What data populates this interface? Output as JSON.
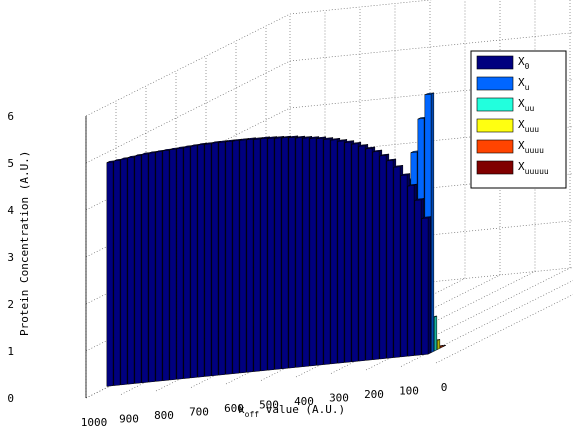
{
  "chart_data": {
    "type": "bar3d",
    "title": "",
    "xlabel": "k",
    "xlabel_sub": "off",
    "xlabel_rest": " value (A.U.)",
    "ylabel": "Protein Concentration (A.U.)",
    "zlim": [
      0,
      6
    ],
    "z_ticks": [
      "0",
      "1",
      "2",
      "3",
      "4",
      "5",
      "6"
    ],
    "koff_ticks": [
      "1000",
      "900",
      "800",
      "700",
      "600",
      "500",
      "400",
      "300",
      "200",
      "100",
      "0"
    ],
    "grid": true,
    "legend_position": "top-right",
    "koff": [
      1000,
      980,
      960,
      940,
      920,
      900,
      880,
      860,
      840,
      820,
      800,
      780,
      760,
      740,
      720,
      700,
      680,
      660,
      640,
      620,
      600,
      580,
      560,
      540,
      520,
      500,
      480,
      460,
      440,
      420,
      400,
      380,
      360,
      340,
      320,
      300,
      280,
      260,
      240,
      220,
      200,
      180,
      160,
      140,
      120,
      100
    ],
    "series": [
      {
        "name": "X0",
        "color": "#00007f",
        "values": [
          4.76,
          4.78,
          4.8,
          4.82,
          4.84,
          4.86,
          4.87,
          4.88,
          4.89,
          4.9,
          4.91,
          4.92,
          4.93,
          4.94,
          4.94,
          4.95,
          4.95,
          4.95,
          4.95,
          4.95,
          4.95,
          4.94,
          4.94,
          4.93,
          4.92,
          4.91,
          4.9,
          4.88,
          4.86,
          4.84,
          4.82,
          4.79,
          4.76,
          4.72,
          4.68,
          4.63,
          4.57,
          4.5,
          4.42,
          4.32,
          4.2,
          4.05,
          3.86,
          3.62,
          3.3,
          2.9
        ]
      },
      {
        "name": "Xu",
        "color": "#0066ff",
        "values": [
          0.3,
          0.33,
          0.36,
          0.39,
          0.42,
          0.45,
          0.48,
          0.51,
          0.54,
          0.57,
          0.6,
          0.63,
          0.66,
          0.69,
          0.72,
          0.75,
          0.78,
          0.81,
          0.84,
          0.88,
          0.92,
          0.96,
          1.0,
          1.05,
          1.1,
          1.15,
          1.2,
          1.26,
          1.32,
          1.39,
          1.46,
          1.54,
          1.63,
          1.72,
          1.83,
          1.95,
          2.09,
          2.25,
          2.44,
          2.66,
          2.94,
          3.28,
          3.72,
          4.3,
          5.0,
          5.5
        ]
      },
      {
        "name": "Xuu",
        "color": "#22ffdd",
        "values": [
          0.005,
          0.005,
          0.005,
          0.006,
          0.006,
          0.006,
          0.007,
          0.007,
          0.008,
          0.008,
          0.009,
          0.009,
          0.01,
          0.01,
          0.011,
          0.012,
          0.013,
          0.014,
          0.015,
          0.016,
          0.018,
          0.019,
          0.021,
          0.023,
          0.025,
          0.027,
          0.03,
          0.033,
          0.037,
          0.041,
          0.046,
          0.052,
          0.058,
          0.066,
          0.075,
          0.086,
          0.1,
          0.118,
          0.14,
          0.17,
          0.21,
          0.26,
          0.33,
          0.42,
          0.55,
          0.72
        ]
      },
      {
        "name": "Xuuu",
        "color": "#ffff11",
        "values": [
          0.0,
          0.0,
          0.0,
          0.0,
          0.0,
          0.0,
          0.0,
          0.0,
          0.0,
          0.0,
          0.001,
          0.001,
          0.001,
          0.001,
          0.001,
          0.001,
          0.001,
          0.001,
          0.002,
          0.002,
          0.002,
          0.002,
          0.003,
          0.003,
          0.003,
          0.004,
          0.004,
          0.005,
          0.006,
          0.007,
          0.008,
          0.009,
          0.011,
          0.013,
          0.015,
          0.018,
          0.022,
          0.027,
          0.033,
          0.041,
          0.052,
          0.066,
          0.085,
          0.11,
          0.145,
          0.19
        ]
      },
      {
        "name": "Xuuuu",
        "color": "#ff4400",
        "values": [
          0,
          0,
          0,
          0,
          0,
          0,
          0,
          0,
          0,
          0,
          0,
          0,
          0,
          0,
          0,
          0,
          0,
          0,
          0,
          0,
          0,
          0,
          0,
          0,
          0,
          0,
          0,
          0.001,
          0.001,
          0.001,
          0.001,
          0.001,
          0.002,
          0.002,
          0.002,
          0.003,
          0.003,
          0.004,
          0.005,
          0.006,
          0.008,
          0.01,
          0.013,
          0.017,
          0.023,
          0.03
        ]
      },
      {
        "name": "Xuuuuu",
        "color": "#800000",
        "values": [
          0,
          0,
          0,
          0,
          0,
          0,
          0,
          0,
          0,
          0,
          0,
          0,
          0,
          0,
          0,
          0,
          0,
          0,
          0,
          0,
          0,
          0,
          0,
          0,
          0,
          0,
          0,
          0,
          0,
          0,
          0,
          0,
          0,
          0,
          0,
          0,
          0,
          0.001,
          0.001,
          0.001,
          0.001,
          0.001,
          0.001,
          0.002,
          0.002,
          0.003
        ]
      }
    ]
  },
  "legend": {
    "items": [
      {
        "base": "X",
        "sub": "0",
        "color": "#00007f"
      },
      {
        "base": "X",
        "sub": "u",
        "color": "#0066ff"
      },
      {
        "base": "X",
        "sub": "uu",
        "color": "#22ffdd"
      },
      {
        "base": "X",
        "sub": "uuu",
        "color": "#ffff11"
      },
      {
        "base": "X",
        "sub": "uuuu",
        "color": "#ff4400"
      },
      {
        "base": "X",
        "sub": "uuuuu",
        "color": "#800000"
      }
    ]
  }
}
